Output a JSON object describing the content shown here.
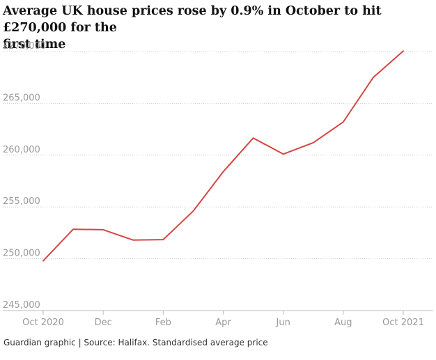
{
  "title_line1": "Average UK house prices rose by 0.9% in October to hit £270,000 for the",
  "title_line2": "first time",
  "footer": "Guardian graphic | Source: Halifax. Standardised average price",
  "colors": {
    "line": "#d64541",
    "grid": "#cccccc",
    "tick_text": "#999999"
  },
  "chart_data": {
    "type": "line",
    "title": "Average UK house prices rose by 0.9% in October to hit £270,000 for the first time",
    "xlabel": "",
    "ylabel": "",
    "ylim": [
      245000,
      270000
    ],
    "y_ticks": [
      {
        "value": 270000,
        "label": "£270,000"
      },
      {
        "value": 265000,
        "label": "265,000"
      },
      {
        "value": 260000,
        "label": "260,000"
      },
      {
        "value": 255000,
        "label": "255,000"
      },
      {
        "value": 250000,
        "label": "250,000"
      },
      {
        "value": 245000,
        "label": "245,000"
      }
    ],
    "x_ticks": [
      {
        "index": 0,
        "label": "Oct 2020"
      },
      {
        "index": 2,
        "label": "Dec"
      },
      {
        "index": 4,
        "label": "Feb"
      },
      {
        "index": 6,
        "label": "Apr"
      },
      {
        "index": 8,
        "label": "Jun"
      },
      {
        "index": 10,
        "label": "Aug"
      },
      {
        "index": 12,
        "label": "Oct 2021"
      }
    ],
    "grid": true,
    "series": [
      {
        "name": "Standardised average price",
        "x": [
          "Oct 2020",
          "Nov",
          "Dec",
          "Jan",
          "Feb",
          "Mar",
          "Apr",
          "May",
          "Jun",
          "Jul",
          "Aug",
          "Sep",
          "Oct 2021"
        ],
        "values": [
          249800,
          252850,
          252800,
          251800,
          251850,
          254600,
          258400,
          261650,
          260100,
          261200,
          263200,
          267500,
          270050
        ]
      }
    ]
  }
}
